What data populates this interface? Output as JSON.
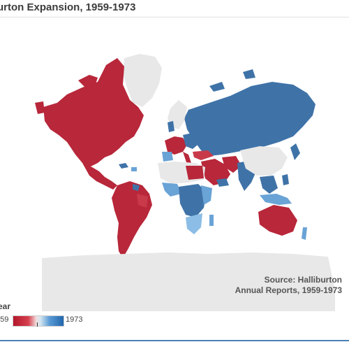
{
  "title": "urton Expansion, 1959-1973",
  "source": {
    "line1": "Source: Halliburton",
    "line2": "Annual Reports, 1959-1973"
  },
  "legend": {
    "title": "ear",
    "min_label": "959",
    "max_label": "1973",
    "color_low": "#b2182b",
    "color_high": "#2166ac",
    "color_no_data": "#e8e8e8"
  },
  "regions": [
    {
      "name": "north-america",
      "year_group": "early"
    },
    {
      "name": "greenland",
      "year_group": "none"
    },
    {
      "name": "central-america",
      "year_group": "early"
    },
    {
      "name": "south-america",
      "year_group": "early"
    },
    {
      "name": "ussr",
      "year_group": "late"
    },
    {
      "name": "europe",
      "year_group": "mixed"
    },
    {
      "name": "middle-east",
      "year_group": "early"
    },
    {
      "name": "africa",
      "year_group": "mixed"
    },
    {
      "name": "china",
      "year_group": "none"
    },
    {
      "name": "india",
      "year_group": "late"
    },
    {
      "name": "southeast-asia",
      "year_group": "late"
    },
    {
      "name": "japan",
      "year_group": "late"
    },
    {
      "name": "australia",
      "year_group": "early"
    },
    {
      "name": "new-zealand",
      "year_group": "late"
    },
    {
      "name": "antarctica",
      "year_group": "none"
    }
  ]
}
